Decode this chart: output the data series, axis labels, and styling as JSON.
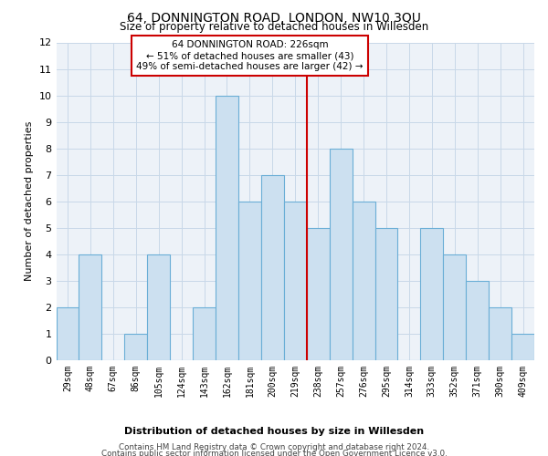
{
  "title": "64, DONNINGTON ROAD, LONDON, NW10 3QU",
  "subtitle": "Size of property relative to detached houses in Willesden",
  "xlabel_bottom": "Distribution of detached houses by size in Willesden",
  "ylabel": "Number of detached properties",
  "categories": [
    "29sqm",
    "48sqm",
    "67sqm",
    "86sqm",
    "105sqm",
    "124sqm",
    "143sqm",
    "162sqm",
    "181sqm",
    "200sqm",
    "219sqm",
    "238sqm",
    "257sqm",
    "276sqm",
    "295sqm",
    "314sqm",
    "333sqm",
    "352sqm",
    "371sqm",
    "390sqm",
    "409sqm"
  ],
  "values": [
    2,
    4,
    0,
    1,
    4,
    0,
    2,
    10,
    6,
    7,
    6,
    5,
    8,
    6,
    5,
    0,
    5,
    4,
    3,
    2,
    1
  ],
  "bar_color": "#cce0f0",
  "bar_edge_color": "#6aaed6",
  "vline_index": 10,
  "highlight_label_line1": "64 DONNINGTON ROAD: 226sqm",
  "highlight_label_line2": "← 51% of detached houses are smaller (43)",
  "highlight_label_line3": "49% of semi-detached houses are larger (42) →",
  "vline_color": "#cc0000",
  "annotation_box_color": "#cc0000",
  "grid_color": "#c8d8e8",
  "background_color": "#edf2f8",
  "footer1": "Contains HM Land Registry data © Crown copyright and database right 2024.",
  "footer2": "Contains public sector information licensed under the Open Government Licence v3.0.",
  "ylim": [
    0,
    12
  ],
  "yticks": [
    0,
    1,
    2,
    3,
    4,
    5,
    6,
    7,
    8,
    9,
    10,
    11,
    12
  ]
}
